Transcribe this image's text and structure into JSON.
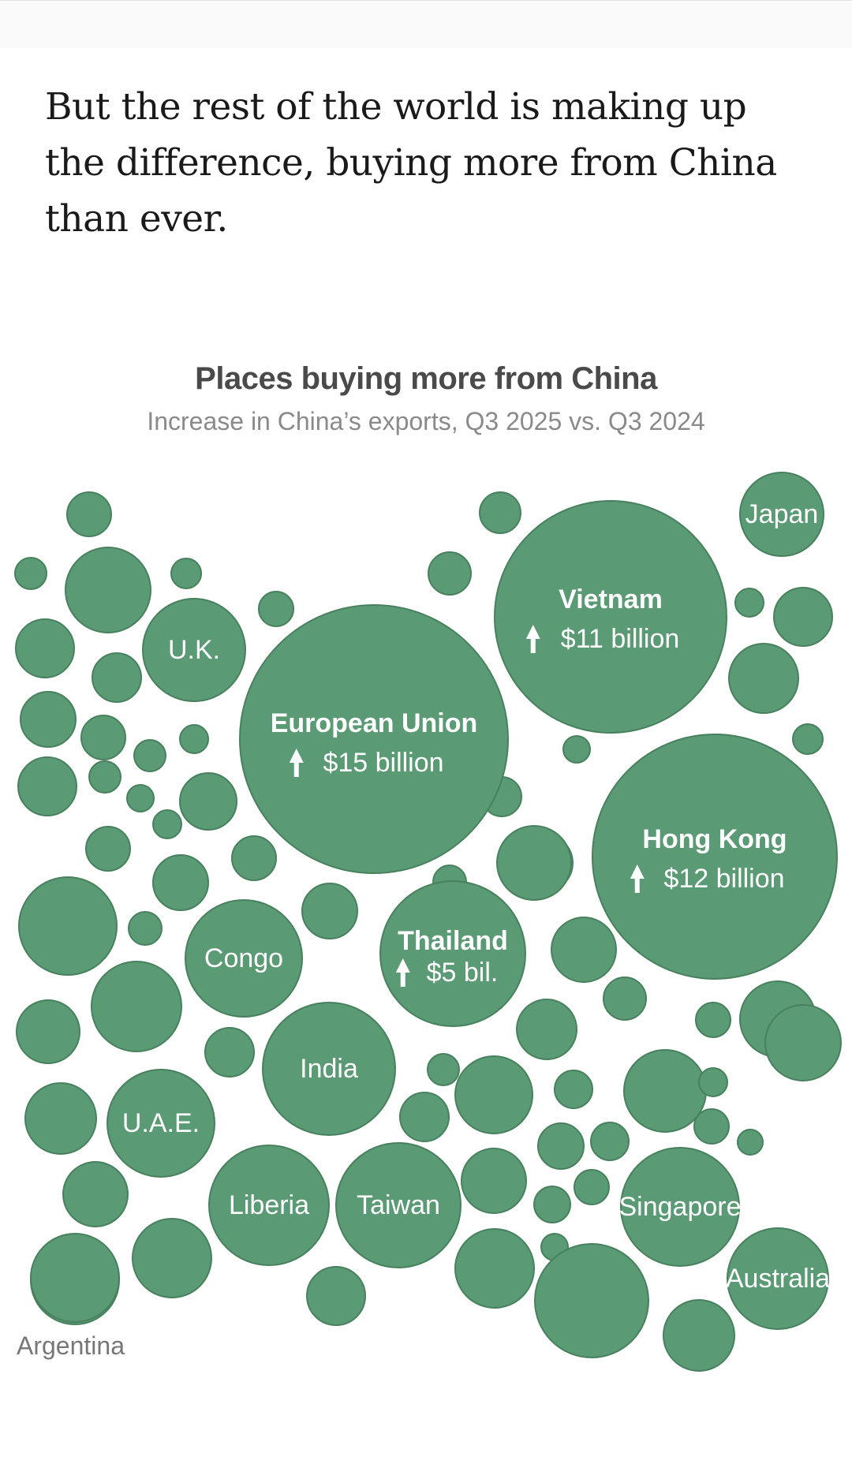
{
  "article": {
    "lede": "But the rest of the world is making up the difference, buying more from China than ever."
  },
  "chart_data": {
    "type": "bubble",
    "title": "Places buying more from China",
    "subtitle": "Increase in China’s exports, Q3 2025 vs. Q3 2024",
    "unit": "billion USD",
    "color": "#5a9a74",
    "labeled": [
      {
        "name": "European Union",
        "value": 15,
        "value_label": "$15 billion",
        "bold": true
      },
      {
        "name": "Hong Kong",
        "value": 12,
        "value_label": "$12 billion",
        "bold": true
      },
      {
        "name": "Vietnam",
        "value": 11,
        "value_label": "$11 billion",
        "bold": true
      },
      {
        "name": "Thailand",
        "value": 5,
        "value_label": "$5 bil.",
        "bold": true
      },
      {
        "name": "India",
        "value": 3.6
      },
      {
        "name": "Taiwan",
        "value": 3.2
      },
      {
        "name": "Liberia",
        "value": 2.9
      },
      {
        "name": "Singapore",
        "value": 2.8
      },
      {
        "name": "Congo",
        "value": 2.7
      },
      {
        "name": "U.A.E.",
        "value": 2.3
      },
      {
        "name": "Australia",
        "value": 2.1
      },
      {
        "name": "U.K.",
        "value": 2.1
      },
      {
        "name": "Japan",
        "value": 1.4
      },
      {
        "name": "Argentina",
        "value": 1.6,
        "external_label": true
      }
    ],
    "unlabeled_count": 66
  }
}
